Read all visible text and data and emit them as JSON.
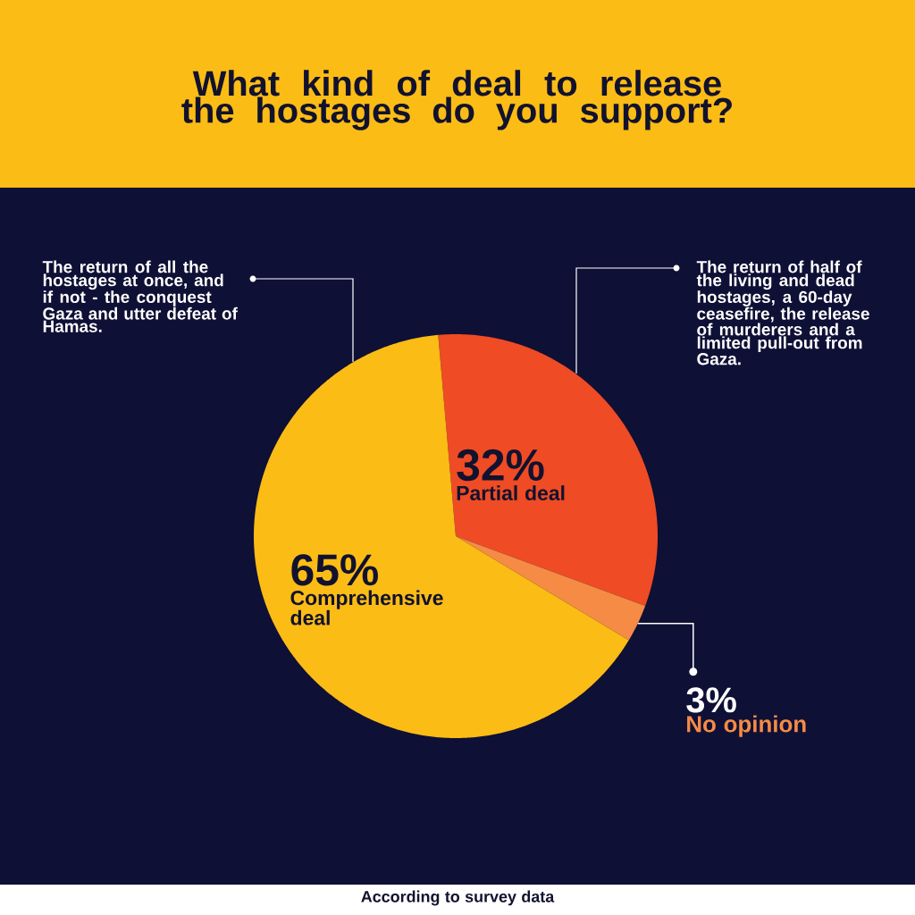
{
  "chart_data": {
    "type": "pie",
    "title": "What kind of deal to release the hostages do you support?",
    "categories": [
      "Partial deal",
      "No opinion",
      "Comprehensive deal"
    ],
    "values": [
      32,
      3,
      65
    ],
    "colors": [
      "#ef4b24",
      "#f58b45",
      "#fbbc15"
    ],
    "value_labels": [
      "32%",
      "3%",
      "65%"
    ],
    "annotations": [
      "The return of half of the living and dead hostages, a 60-day ceasefire, the release of murderers and a limited pull-out from Gaza.",
      "The return of all the hostages at once, and if not - the conquest Gaza and utter defeat of Hamas.",
      "According to survey data"
    ]
  }
}
